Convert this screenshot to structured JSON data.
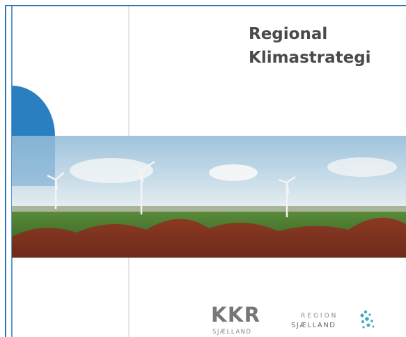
{
  "title": {
    "line1": "Regional",
    "line2": "Klimastrategi"
  },
  "logos": {
    "kkr": {
      "name": "KKR",
      "sub": "SJÆLLAND"
    },
    "region": {
      "name": "REGION",
      "sub": "SJÆLLAND"
    }
  }
}
